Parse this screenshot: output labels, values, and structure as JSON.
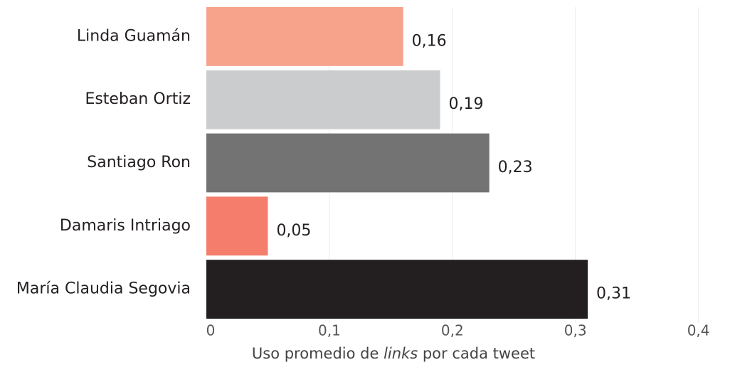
{
  "chart_data": {
    "type": "barh",
    "categories": [
      "Linda Guamán",
      "Esteban Ortiz",
      "Santiago Ron",
      "Damaris Intriago",
      "María Claudia Segovia"
    ],
    "values": [
      0.16,
      0.19,
      0.23,
      0.05,
      0.31
    ],
    "value_labels": [
      "0,16",
      "0,19",
      "0,23",
      "0,05",
      "0,31"
    ],
    "colors": [
      "#f7a28a",
      "#cbcccd",
      "#737373",
      "#f47e6b",
      "#231f20"
    ],
    "xlim": [
      0,
      0.4
    ],
    "xticks": [
      0,
      {
        "value": 0.1,
        "label": "0,1"
      },
      {
        "value": 0.2,
        "label": "0,2"
      },
      {
        "value": 0.3,
        "label": "0,3"
      },
      {
        "value": 0.4,
        "label": "0,4"
      }
    ],
    "xlabel": [
      "Uso promedio de ",
      "links",
      " por cada tweet"
    ],
    "grid": true
  }
}
